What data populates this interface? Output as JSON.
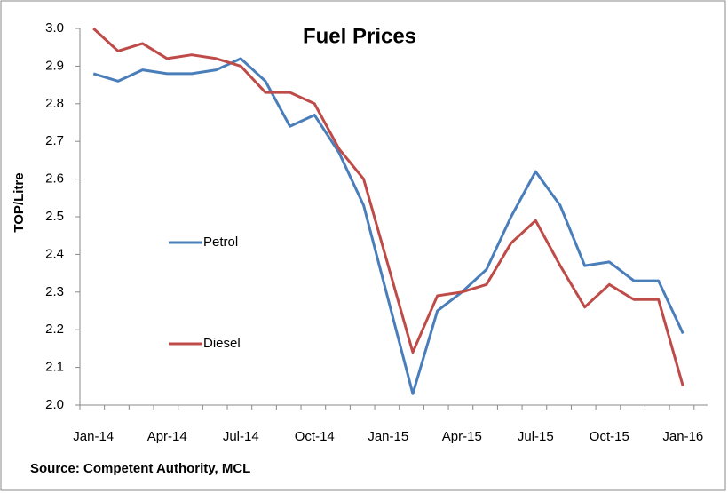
{
  "chart_data": {
    "type": "line",
    "title": "Fuel Prices",
    "y_label": "TOP/Litre",
    "source": "Source: Competent Authority, MCL",
    "categories": [
      "Jan-14",
      null,
      null,
      "Apr-14",
      null,
      null,
      "Jul-14",
      null,
      null,
      "Oct-14",
      null,
      null,
      "Jan-15",
      null,
      null,
      "Apr-15",
      null,
      null,
      "Jul-15",
      null,
      null,
      "Oct-15",
      null,
      null,
      "Jan-16"
    ],
    "series": [
      {
        "name": "Petrol",
        "color": "#4a7ebb",
        "values": [
          2.88,
          2.86,
          2.89,
          2.88,
          2.88,
          2.89,
          2.92,
          2.86,
          2.74,
          2.77,
          2.67,
          2.53,
          2.28,
          2.03,
          2.25,
          2.3,
          2.36,
          2.5,
          2.62,
          2.53,
          2.37,
          2.38,
          2.33,
          2.33,
          2.19
        ]
      },
      {
        "name": "Diesel",
        "color": "#be4b48",
        "values": [
          3.0,
          2.94,
          2.96,
          2.92,
          2.93,
          2.92,
          2.9,
          2.83,
          2.83,
          2.8,
          2.68,
          2.6,
          2.37,
          2.14,
          2.29,
          2.3,
          2.32,
          2.43,
          2.49,
          2.37,
          2.26,
          2.32,
          2.28,
          2.28,
          2.05
        ]
      }
    ],
    "ylim": [
      2.0,
      3.0
    ],
    "yticks": [
      {
        "value": 2.0,
        "label": "2.0"
      },
      2.1,
      2.2,
      2.3,
      2.4,
      2.5,
      2.6,
      2.7,
      2.8,
      2.9,
      {
        "value": 3.0,
        "label": "3.0"
      }
    ],
    "grid": false
  }
}
